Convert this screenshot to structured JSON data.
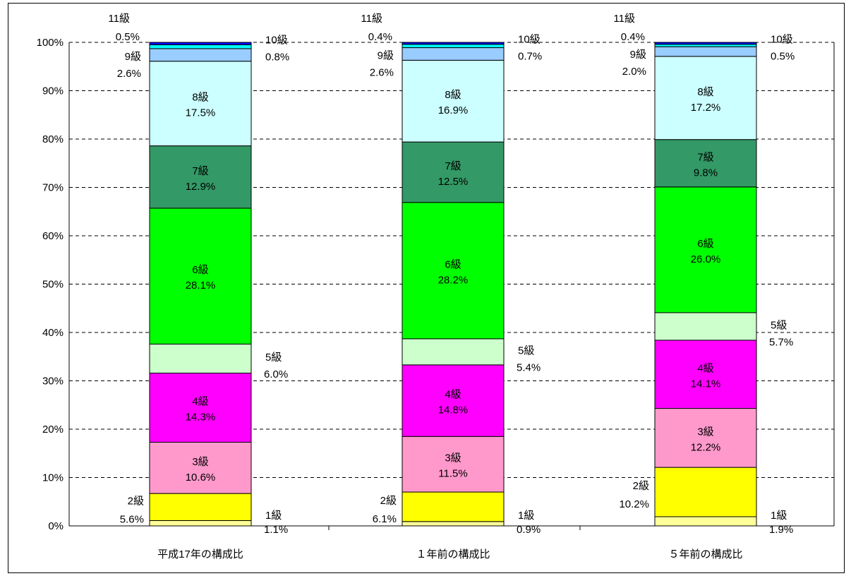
{
  "chart_data": {
    "type": "bar",
    "stacked": true,
    "percent": true,
    "categories": [
      "平成17年の構成比",
      "１年前の構成比",
      "５年前の構成比"
    ],
    "y_ticks": [
      "0%",
      "10%",
      "20%",
      "30%",
      "40%",
      "50%",
      "60%",
      "70%",
      "80%",
      "90%",
      "100%"
    ],
    "ylim": [
      0,
      100
    ],
    "grid": "dashed-horizontal",
    "legend": "none",
    "series": [
      {
        "name": "1級",
        "color": "#ffff99",
        "values": [
          1.1,
          0.9,
          1.9
        ],
        "value_labels": [
          "1.1%",
          "0.9%",
          "1.9%"
        ]
      },
      {
        "name": "2級",
        "color": "#ffff00",
        "values": [
          5.6,
          6.1,
          10.2
        ],
        "value_labels": [
          "5.6%",
          "6.1%",
          "10.2%"
        ]
      },
      {
        "name": "3級",
        "color": "#ff99cc",
        "values": [
          10.6,
          11.5,
          12.2
        ],
        "value_labels": [
          "10.6%",
          "11.5%",
          "12.2%"
        ]
      },
      {
        "name": "4級",
        "color": "#ff00ff",
        "values": [
          14.3,
          14.8,
          14.1
        ],
        "value_labels": [
          "14.3%",
          "14.8%",
          "14.1%"
        ]
      },
      {
        "name": "5級",
        "color": "#ccffcc",
        "values": [
          6.0,
          5.4,
          5.7
        ],
        "value_labels": [
          "6.0%",
          "5.4%",
          "5.7%"
        ]
      },
      {
        "name": "6級",
        "color": "#00ff00",
        "values": [
          28.1,
          28.2,
          26.0
        ],
        "value_labels": [
          "28.1%",
          "28.2%",
          "26.0%"
        ]
      },
      {
        "name": "7級",
        "color": "#339966",
        "values": [
          12.9,
          12.5,
          9.8
        ],
        "value_labels": [
          "12.9%",
          "12.5%",
          "9.8%"
        ]
      },
      {
        "name": "8級",
        "color": "#ccffff",
        "values": [
          17.5,
          16.9,
          17.2
        ],
        "value_labels": [
          "17.5%",
          "16.9%",
          "17.2%"
        ]
      },
      {
        "name": "9級",
        "color": "#99ccff",
        "values": [
          2.6,
          2.6,
          2.0
        ],
        "value_labels": [
          "2.6%",
          "2.6%",
          "2.0%"
        ]
      },
      {
        "name": "10級",
        "color": "#00ffff",
        "values": [
          0.8,
          0.7,
          0.5
        ],
        "value_labels": [
          "0.8%",
          "0.7%",
          "0.5%"
        ]
      },
      {
        "name": "11級",
        "color": "#0000ff",
        "values": [
          0.5,
          0.4,
          0.4
        ],
        "value_labels": [
          "0.5%",
          "0.4%",
          "0.4%"
        ]
      }
    ]
  }
}
